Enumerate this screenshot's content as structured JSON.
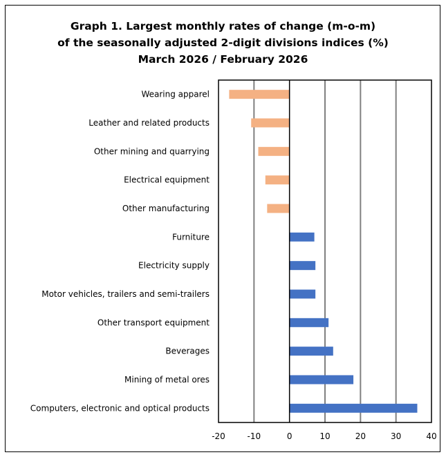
{
  "chart_data": {
    "type": "bar",
    "orientation": "horizontal",
    "title_lines": [
      "Graph 1. Largest monthly rates of change (m-o-m)",
      "of the seasonally adjusted 2-digit divisions indices (%)",
      "March 2026 / February 2026"
    ],
    "categories": [
      "Wearing apparel",
      "Leather and related products",
      "Other mining and quarrying",
      "Electrical equipment",
      "Other manufacturing",
      "Furniture",
      "Electricity supply",
      "Motor vehicles, trailers and semi-trailers",
      "Other transport equipment",
      "Beverages",
      "Mining of metal ores",
      "Computers, electronic and optical products"
    ],
    "values": [
      -17.0,
      -10.8,
      -8.8,
      -6.8,
      -6.3,
      7.0,
      7.3,
      7.3,
      11.0,
      12.3,
      18.0,
      36.0
    ],
    "xlim": [
      -20,
      40
    ],
    "xticks": [
      "-20",
      "-10",
      "0",
      "10",
      "20",
      "30",
      "40"
    ],
    "xtick_values": [
      -20,
      -10,
      0,
      10,
      20,
      30,
      40
    ],
    "gridlines": [
      -10,
      10,
      20,
      30
    ],
    "grid": true,
    "colors": {
      "negative": "#F4B183",
      "positive": "#4472C4",
      "grid": "#808080",
      "axis": "#000000"
    }
  }
}
